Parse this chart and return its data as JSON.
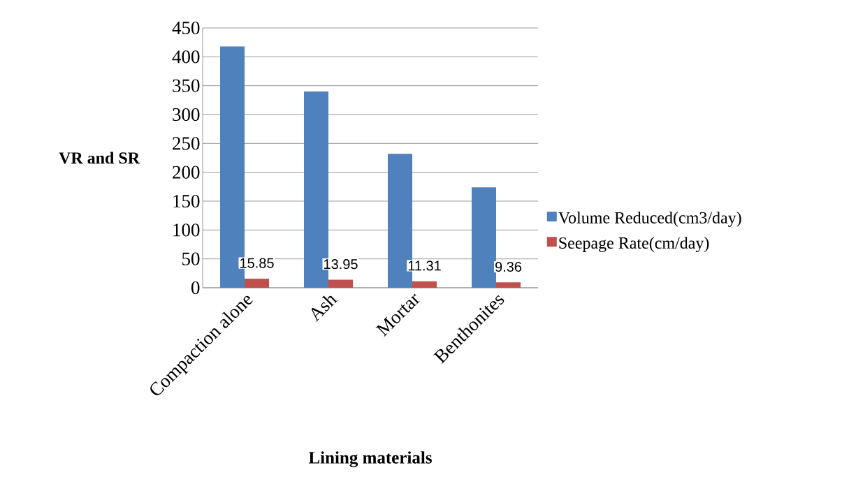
{
  "chart_data": {
    "type": "bar",
    "xlabel": "Lining materials",
    "ylabel": "VR and SR",
    "categories": [
      "Compaction alone",
      "Ash",
      "Mortar",
      "Benthonites"
    ],
    "series": [
      {
        "name": "Volume Reduced(cm3/day)",
        "color": "#4f81bd",
        "values": [
          418,
          340,
          232,
          174
        ]
      },
      {
        "name": "Seepage Rate(cm/day)",
        "color": "#c0504d",
        "values": [
          15.85,
          13.95,
          11.31,
          9.36
        ],
        "value_labels": [
          "15.85",
          "13.95",
          "11.31",
          "9.36"
        ]
      }
    ],
    "ylim": [
      0,
      450
    ],
    "yticks": [
      0,
      50,
      100,
      150,
      200,
      250,
      300,
      350,
      400,
      450
    ],
    "grid": "y",
    "legend": "right"
  }
}
